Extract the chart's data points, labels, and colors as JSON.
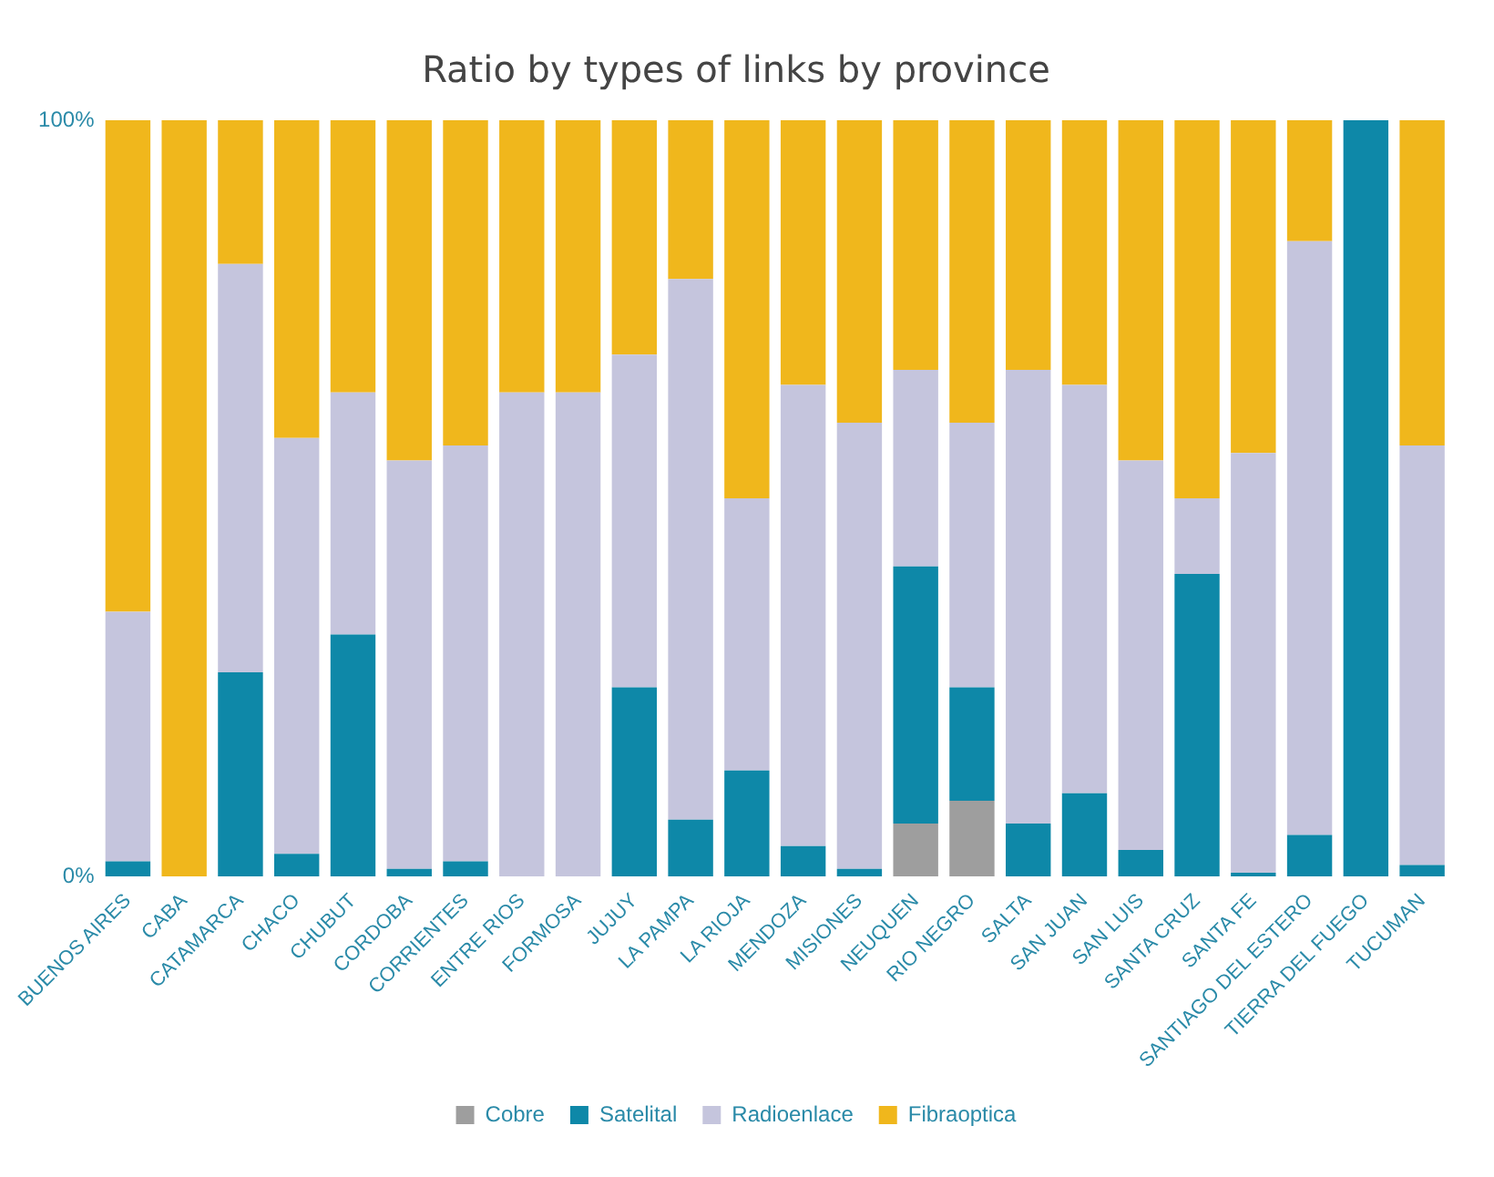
{
  "chart_data": {
    "type": "bar",
    "title": "Ratio by types of links by province",
    "stacked": true,
    "legend": "bottom",
    "grid": false,
    "categories": [
      "BUENOS AIRES",
      "CABA",
      "CATAMARCA",
      "CHACO",
      "CHUBUT",
      "CORDOBA",
      "CORRIENTES",
      "ENTRE RIOS",
      "FORMOSA",
      "JUJUY",
      "LA PAMPA",
      "LA RIOJA",
      "MENDOZA",
      "MISIONES",
      "NEUQUEN",
      "RIO NEGRO",
      "SALTA",
      "SAN JUAN",
      "SAN LUIS",
      "SANTA CRUZ",
      "SANTA FE",
      "SANTIAGO DEL ESTERO",
      "TIERRA DEL FUEGO",
      "TUCUMAN"
    ],
    "ylim": [
      0,
      100
    ],
    "yticks": [
      {
        "value": 0,
        "label": "0%"
      },
      {
        "value": 100,
        "label": "100%"
      }
    ],
    "series": [
      {
        "name": "Cobre",
        "color": "#9e9e9e",
        "values": [
          0,
          0,
          0,
          0,
          0,
          0,
          0,
          0,
          0,
          0,
          0,
          0,
          0,
          0,
          7,
          10,
          0,
          0,
          0,
          0,
          0,
          0,
          0,
          0
        ]
      },
      {
        "name": "Satelital",
        "color": "#0e88a8",
        "values": [
          2,
          0,
          27,
          3,
          32,
          1,
          2,
          0,
          0,
          25,
          7.5,
          14,
          4,
          1,
          34,
          15,
          7,
          11,
          3.5,
          40,
          0.5,
          5.5,
          100,
          1.5
        ]
      },
      {
        "name": "Radioenlace",
        "color": "#c5c5dd",
        "values": [
          33,
          0,
          54,
          55,
          32,
          54,
          55,
          64,
          64,
          44,
          71.5,
          36,
          61,
          59,
          26,
          35,
          60,
          54,
          51.5,
          10,
          55.5,
          78.5,
          0,
          55.5
        ]
      },
      {
        "name": "Fibraoptica",
        "color": "#f0b71c",
        "values": [
          65,
          100,
          19,
          42,
          36,
          45,
          43,
          36,
          36,
          31,
          21,
          50,
          35,
          40,
          33,
          40,
          33,
          35,
          45,
          50,
          44,
          16,
          0,
          43
        ]
      }
    ]
  }
}
